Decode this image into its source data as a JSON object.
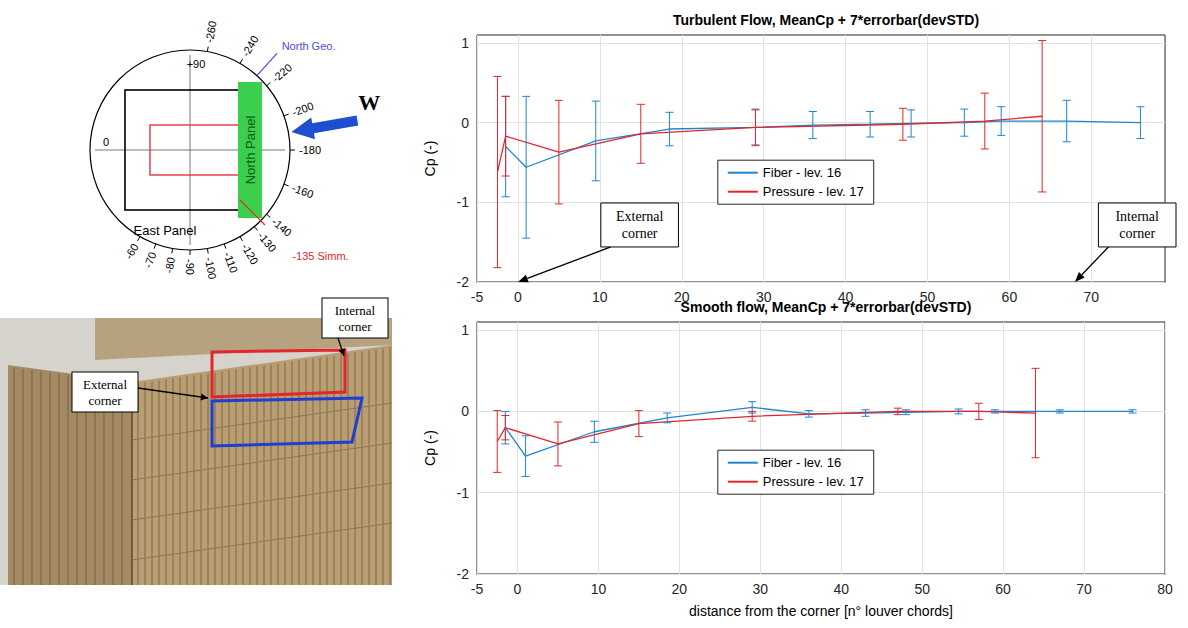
{
  "diagram": {
    "compass": {
      "ticks": [
        -260,
        -240,
        -220,
        -200,
        -180,
        -160,
        -140,
        -130,
        -120,
        -110,
        -100,
        -90,
        -80,
        -70,
        -60
      ],
      "inner_ticks": [
        {
          "value": 90,
          "label": "+90"
        },
        0
      ],
      "north_geo": {
        "text": "North Geo.",
        "angle": -228
      },
      "symmetry": {
        "text": "-135 Simm.",
        "angle": -135
      },
      "wind": {
        "text": "W",
        "angle": -190
      },
      "north_panel": "North Panel",
      "east_panel": "East Panel"
    },
    "photo": {
      "internal_label": "Internal corner",
      "external_label": "External corner"
    }
  },
  "chart_data": [
    {
      "type": "line",
      "title": "Turbulent Flow, MeanCp + 7*errorbar(devSTD)",
      "ylabel": "Cp (-)",
      "xlim": [
        -5,
        79
      ],
      "xticks": [
        -5,
        0,
        10,
        20,
        30,
        40,
        50,
        60,
        70
      ],
      "ylim": [
        -2,
        1.1
      ],
      "yticks": [
        -2,
        -1,
        0,
        1
      ],
      "grid": true,
      "legend": "center",
      "series": [
        {
          "name": "Fiber - lev. 16",
          "color": "#1f85d0",
          "x": [
            -1.5,
            1,
            9.5,
            18.5,
            29,
            36,
            43,
            48,
            54.5,
            59,
            67,
            76
          ],
          "values": [
            -0.3,
            -0.56,
            -0.23,
            -0.08,
            -0.06,
            -0.03,
            -0.02,
            -0.01,
            0.0,
            0.02,
            0.02,
            0.0
          ],
          "errors": [
            0.63,
            0.89,
            0.5,
            0.21,
            0.23,
            0.17,
            0.16,
            0.17,
            0.17,
            0.18,
            0.26,
            0.2
          ]
        },
        {
          "name": "Pressure - lev. 17",
          "color": "#e3262b",
          "x": [
            -2.5,
            -1.5,
            5,
            15,
            29,
            47,
            57,
            64
          ],
          "values": [
            -0.62,
            -0.17,
            -0.37,
            -0.14,
            -0.06,
            -0.02,
            0.02,
            0.08
          ],
          "errors": [
            1.2,
            0.5,
            0.65,
            0.37,
            0.22,
            0.2,
            0.35,
            0.95
          ]
        }
      ],
      "annotations": [
        {
          "text": "External corner",
          "x": 0,
          "y": -2
        },
        {
          "text": "Internal corner",
          "x": 68,
          "y": -2
        }
      ]
    },
    {
      "type": "line",
      "title": "Smooth flow, MeanCp + 7*errorbar(devSTD)",
      "xlabel": "distance from the corner [n° louver chords]",
      "ylabel": "Cp (-)",
      "xlim": [
        -5,
        80
      ],
      "xticks": [
        -5,
        0,
        10,
        20,
        30,
        40,
        50,
        60,
        70,
        80
      ],
      "ylim": [
        -2,
        1.1
      ],
      "yticks": [
        -2,
        -1,
        0,
        1
      ],
      "grid": true,
      "legend": "center",
      "series": [
        {
          "name": "Fiber - lev. 16",
          "color": "#1f85d0",
          "x": [
            -1.5,
            1,
            9.5,
            18.5,
            29,
            36,
            43,
            48,
            54.5,
            59,
            67,
            76
          ],
          "values": [
            -0.2,
            -0.55,
            -0.25,
            -0.08,
            0.05,
            -0.03,
            -0.02,
            -0.01,
            0.0,
            0.0,
            0.0,
            0.0
          ],
          "errors": [
            0.2,
            0.25,
            0.13,
            0.06,
            0.07,
            0.04,
            0.04,
            0.03,
            0.03,
            0.02,
            0.02,
            0.02
          ]
        },
        {
          "name": "Pressure - lev. 17",
          "color": "#e3262b",
          "x": [
            -2.5,
            -1.5,
            5,
            15,
            29,
            47,
            57,
            64
          ],
          "values": [
            -0.37,
            -0.2,
            -0.4,
            -0.15,
            -0.06,
            0.0,
            0.0,
            -0.02
          ],
          "errors": [
            0.38,
            0.15,
            0.27,
            0.16,
            0.06,
            0.04,
            0.1,
            0.55
          ]
        }
      ]
    }
  ]
}
